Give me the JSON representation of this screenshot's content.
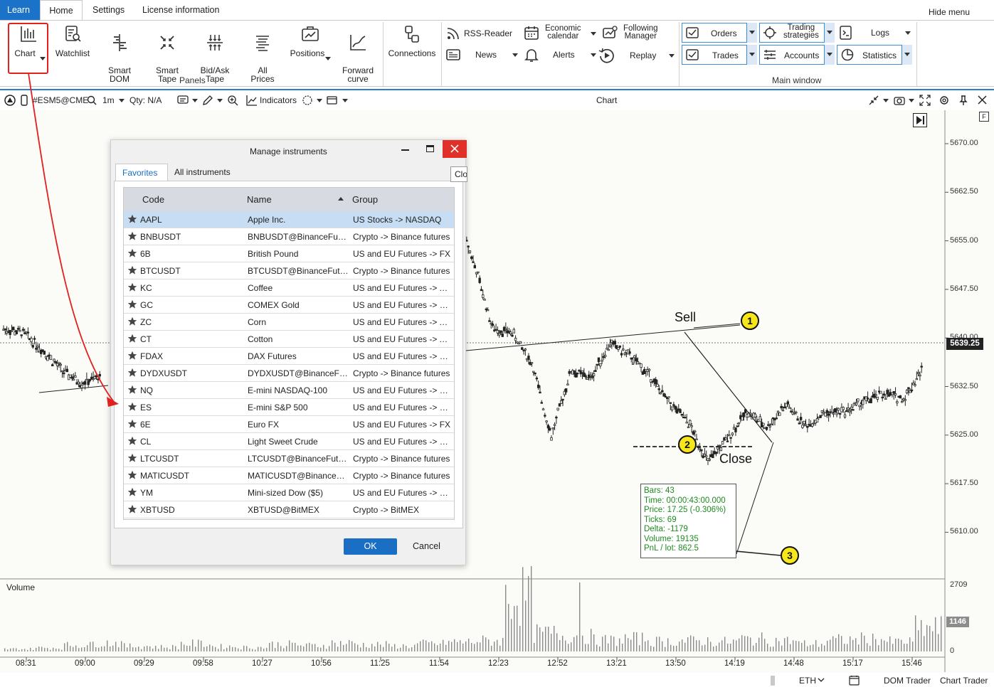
{
  "menu": {
    "tabs": [
      "Learn",
      "Home",
      "Settings",
      "License information"
    ],
    "hide_menu": "Hide menu"
  },
  "ribbon": {
    "panels": [
      {
        "label": "Chart",
        "icon": "bar-chart-icon"
      },
      {
        "label": "Watchlist",
        "icon": "watchlist-icon"
      },
      {
        "label": "Smart\nDOM",
        "icon": "smart-dom-icon"
      },
      {
        "label": "Smart\nTape",
        "icon": "smart-tape-icon"
      },
      {
        "label": "Bid/Ask\nTape",
        "icon": "bid-ask-tape-icon"
      },
      {
        "label": "All\nPrices",
        "icon": "all-prices-icon"
      },
      {
        "label": "Positions",
        "icon": "positions-icon"
      },
      {
        "label": "Forward\ncurve",
        "icon": "forward-curve-icon"
      }
    ],
    "panels_group_label": "Panels",
    "connections_label": "Connections",
    "tools": [
      {
        "label": "RSS-Reader",
        "icon": "rss-icon"
      },
      {
        "label": "News",
        "icon": "news-icon"
      },
      {
        "label": "Economic\ncalendar",
        "icon": "calendar-icon"
      },
      {
        "label": "Alerts",
        "icon": "bell-icon"
      },
      {
        "label": "Following\nManager",
        "icon": "following-manager-icon"
      },
      {
        "label": "Replay",
        "icon": "replay-icon"
      }
    ],
    "main_window": [
      {
        "label": "Orders",
        "icon": "orders-icon"
      },
      {
        "label": "Trades",
        "icon": "trades-icon"
      },
      {
        "label": "Trading\nstrategies",
        "icon": "trading-strategies-icon"
      },
      {
        "label": "Accounts",
        "icon": "accounts-icon"
      },
      {
        "label": "Logs",
        "icon": "logs-icon"
      },
      {
        "label": "Statistics",
        "icon": "statistics-icon"
      }
    ],
    "main_window_group_label": "Main window"
  },
  "chart_toolbar": {
    "symbol": "#ESM5@CME",
    "timeframe": "1m",
    "qty": "Qty: N/A",
    "indicators": "Indicators",
    "title": "Chart"
  },
  "chart_data": {
    "type": "line",
    "ylim": [
      5605,
      5675
    ],
    "yticks": [
      "5670.00",
      "5662.50",
      "5655.00",
      "5647.50",
      "5640.00",
      "5632.50",
      "5625.00",
      "5617.50",
      "5610.00"
    ],
    "xticks": [
      "08:31",
      "09:00",
      "09:29",
      "09:58",
      "10:27",
      "10:56",
      "11:25",
      "11:54",
      "12:23",
      "12:52",
      "13:21",
      "13:50",
      "14:19",
      "14:48",
      "15:17",
      "15:46"
    ],
    "last_price": "5639.25",
    "volume_label": "Volume",
    "volume_max": "2709",
    "volume_last": "1146",
    "volume_zero": "0",
    "price_path": [
      [
        0,
        5641.4
      ],
      [
        1,
        5640.8
      ],
      [
        2,
        5638.2
      ],
      [
        3,
        5634.9
      ],
      [
        4,
        5633.1
      ],
      [
        5,
        5634.0
      ],
      [
        18,
        5653.8
      ],
      [
        19,
        5656.4
      ],
      [
        20,
        5659.5
      ],
      [
        21,
        5661.8
      ],
      [
        22,
        5662.8
      ],
      [
        23,
        5660.5
      ],
      [
        24,
        5652.0
      ],
      [
        25,
        5641.5
      ],
      [
        26,
        5640.8
      ],
      [
        27,
        5636.0
      ],
      [
        28,
        5624.8
      ],
      [
        29,
        5635.0
      ],
      [
        30,
        5633.8
      ],
      [
        31,
        5639.2
      ],
      [
        32,
        5637.2
      ],
      [
        33,
        5634.3
      ],
      [
        34,
        5630.0
      ],
      [
        35,
        5627.0
      ],
      [
        36,
        5620.8
      ],
      [
        37,
        5624.5
      ],
      [
        38,
        5628.7
      ],
      [
        39,
        5626.2
      ],
      [
        40,
        5629.7
      ],
      [
        41,
        5626.4
      ],
      [
        42,
        5628.4
      ],
      [
        43,
        5628.7
      ],
      [
        44,
        5630.2
      ],
      [
        45,
        5631.4
      ],
      [
        46,
        5630.6
      ],
      [
        47,
        5635.5
      ]
    ],
    "volume_values": [
      120,
      180,
      310,
      420,
      260,
      220,
      380,
      240,
      200,
      350,
      290,
      410,
      330,
      270,
      380,
      460,
      520,
      2709,
      880,
      760,
      540,
      620,
      490,
      520,
      470,
      600,
      520,
      380,
      560,
      610,
      470,
      1146
    ]
  },
  "annotations": {
    "sell": "Sell",
    "close": "Close",
    "badge1": "1",
    "badge2": "2",
    "badge3": "3"
  },
  "stats": {
    "bars": "Bars:   43",
    "time": "Time:  00:00:43:00.000",
    "price": "Price: 17.25 (-0.306%)",
    "ticks": "Ticks:  69",
    "delta": "Delta:  -1179",
    "volume": "Volume: 19135",
    "pnl": "PnL / lot: 862.5"
  },
  "statusbar": {
    "eth": "ETH",
    "dom_trader": "DOM Trader",
    "chart_trader": "Chart Trader"
  },
  "dialog": {
    "title": "Manage instruments",
    "tooltip": "Close",
    "tabs": [
      "Favorites",
      "All instruments"
    ],
    "columns": [
      "Code",
      "Name",
      "Group"
    ],
    "rows": [
      {
        "code": "AAPL",
        "name": "Apple Inc.",
        "group": "US Stocks -> NASDAQ"
      },
      {
        "code": "BNBUSDT",
        "name": "BNBUSDT@BinanceFutures",
        "group": "Crypto -> Binance futures"
      },
      {
        "code": "6B",
        "name": "British Pound",
        "group": "US and EU Futures -> FX"
      },
      {
        "code": "BTCUSDT",
        "name": "BTCUSDT@BinanceFutures",
        "group": "Crypto -> Binance futures"
      },
      {
        "code": "KC",
        "name": "Coffee",
        "group": "US and EU Futures -> Agriculture"
      },
      {
        "code": "GC",
        "name": "COMEX Gold",
        "group": "US and EU Futures -> Metals"
      },
      {
        "code": "ZC",
        "name": "Corn",
        "group": "US and EU Futures -> Agriculture"
      },
      {
        "code": "CT",
        "name": "Cotton",
        "group": "US and EU Futures -> Agriculture"
      },
      {
        "code": "FDAX",
        "name": "DAX Futures",
        "group": "US and EU Futures -> Equity"
      },
      {
        "code": "DYDXUSDT",
        "name": "DYDXUSDT@BinanceFutures",
        "group": "Crypto -> Binance futures"
      },
      {
        "code": "NQ",
        "name": "E-mini NASDAQ-100",
        "group": "US and EU Futures -> Equity"
      },
      {
        "code": "ES",
        "name": "E-mini S&P 500",
        "group": "US and EU Futures -> Equity"
      },
      {
        "code": "6E",
        "name": "Euro FX",
        "group": "US and EU Futures -> FX"
      },
      {
        "code": "CL",
        "name": "Light Sweet Crude",
        "group": "US and EU Futures -> Energy"
      },
      {
        "code": "LTCUSDT",
        "name": "LTCUSDT@BinanceFutures",
        "group": "Crypto -> Binance futures"
      },
      {
        "code": "MATICUSDT",
        "name": "MATICUSDT@BinanceFutures",
        "group": "Crypto -> Binance futures"
      },
      {
        "code": "YM",
        "name": "Mini-sized Dow ($5)",
        "group": "US and EU Futures -> Equity"
      },
      {
        "code": "XBTUSD",
        "name": "XBTUSD@BitMEX",
        "group": "Crypto -> BitMEX"
      }
    ],
    "ok": "OK",
    "cancel": "Cancel"
  },
  "colors": {
    "accent": "#1a6fc4",
    "highlight": "#e0211f",
    "badge": "#f7e61a",
    "stats_text": "#1e8a1e"
  }
}
